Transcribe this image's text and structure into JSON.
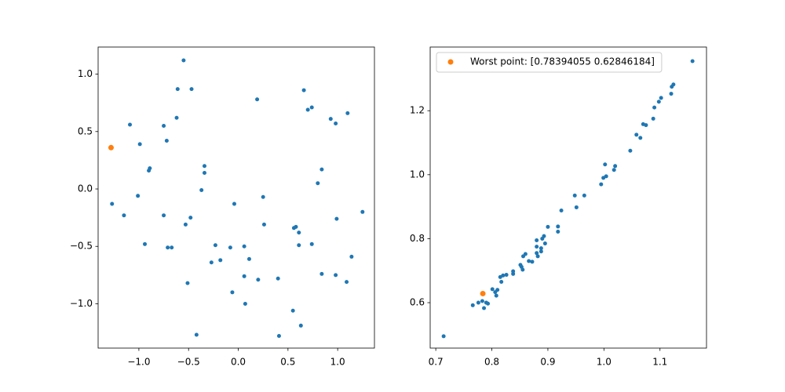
{
  "chart_data": [
    {
      "type": "scatter",
      "xlim": [
        -1.41,
        1.37
      ],
      "ylim": [
        -1.386,
        1.236
      ],
      "xticks": [
        {
          "value": -1,
          "label": "−1.0"
        },
        {
          "value": -0.5,
          "label": "−0.5"
        },
        {
          "value": 0,
          "label": "0.0"
        },
        0.5,
        {
          "value": 1,
          "label": "1.0"
        }
      ],
      "yticks": [
        {
          "value": -1,
          "label": "−1.0"
        },
        {
          "value": -0.5,
          "label": "−0.5"
        },
        {
          "value": 0,
          "label": "0.0"
        },
        0.5,
        {
          "value": 1,
          "label": "1.0"
        }
      ],
      "series": [
        {
          "color": "#1f77b4",
          "x": [
            -0.55,
            -0.61,
            -0.47,
            0.66,
            0.19,
            0.74,
            0.7,
            1.1,
            -0.62,
            0.93,
            0.98,
            -1.09,
            -0.75,
            -0.72,
            -0.99,
            -0.34,
            -0.34,
            -0.89,
            -0.9,
            0.84,
            0.8,
            -0.37,
            -1.01,
            0.25,
            -1.27,
            -0.04,
            -1.15,
            -0.75,
            -0.48,
            1.25,
            0.99,
            0.26,
            -0.53,
            0.56,
            0.58,
            0.61,
            -0.94,
            -0.23,
            0.61,
            0.74,
            -0.71,
            -0.67,
            -0.08,
            0.06,
            1.14,
            0.11,
            -0.18,
            -0.27,
            0.84,
            0.06,
            0.4,
            0.2,
            0.98,
            1.09,
            -0.51,
            -0.06,
            0.07,
            0.55,
            0.63,
            -0.42,
            0.41
          ],
          "values": [
            1.12,
            0.87,
            0.87,
            0.86,
            0.78,
            0.71,
            0.69,
            0.66,
            0.62,
            0.61,
            0.57,
            0.56,
            0.55,
            0.42,
            0.39,
            0.2,
            0.14,
            0.18,
            0.16,
            0.17,
            0.05,
            -0.01,
            -0.06,
            -0.07,
            -0.13,
            -0.13,
            -0.23,
            -0.23,
            -0.25,
            -0.2,
            -0.26,
            -0.31,
            -0.31,
            -0.34,
            -0.33,
            -0.38,
            -0.48,
            -0.49,
            -0.49,
            -0.48,
            -0.51,
            -0.51,
            -0.51,
            -0.5,
            -0.59,
            -0.61,
            -0.62,
            -0.64,
            -0.74,
            -0.76,
            -0.78,
            -0.79,
            -0.75,
            -0.81,
            -0.82,
            -0.9,
            -1.0,
            -1.06,
            -1.19,
            -1.27,
            -1.28
          ],
          "size": 4
        },
        {
          "color": "#ff7f0e",
          "x": [
            -1.28
          ],
          "values": [
            0.36
          ],
          "size": 6
        }
      ]
    },
    {
      "type": "scatter",
      "xlim": [
        0.69,
        1.183
      ],
      "ylim": [
        0.458,
        1.399
      ],
      "xticks": [
        0.7,
        0.8,
        0.9,
        {
          "value": 1,
          "label": "1.0"
        },
        1.1
      ],
      "yticks": [
        0.6,
        0.8,
        {
          "value": 1,
          "label": "1.0"
        },
        1.2
      ],
      "legend": "upper left",
      "series": [
        {
          "color": "#1f77b4",
          "x": [
            0.714,
            0.766,
            0.776,
            0.783,
            0.786,
            0.79,
            0.793,
            0.801,
            0.806,
            0.808,
            0.81,
            0.815,
            0.817,
            0.82,
            0.826,
            0.838,
            0.838,
            0.851,
            0.853,
            0.855,
            0.856,
            0.86,
            0.866,
            0.872,
            0.88,
            0.88,
            0.88,
            0.882,
            0.888,
            0.888,
            0.89,
            0.893,
            0.895,
            0.9,
            0.918,
            0.918,
            0.924,
            0.948,
            0.951,
            0.965,
            0.995,
            0.999,
            1.002,
            1.004,
            1.018,
            1.02,
            1.047,
            1.058,
            1.065,
            1.07,
            1.075,
            1.088,
            1.09,
            1.098,
            1.102,
            1.12,
            1.121,
            1.124,
            1.158
          ],
          "values": [
            0.495,
            0.592,
            0.6,
            0.605,
            0.583,
            0.6,
            0.597,
            0.642,
            0.633,
            0.622,
            0.64,
            0.68,
            0.665,
            0.685,
            0.687,
            0.69,
            0.698,
            0.718,
            0.712,
            0.703,
            0.745,
            0.752,
            0.73,
            0.728,
            0.795,
            0.775,
            0.755,
            0.745,
            0.77,
            0.76,
            0.8,
            0.808,
            0.785,
            0.837,
            0.822,
            0.838,
            0.888,
            0.935,
            0.898,
            0.935,
            0.97,
            0.99,
            1.032,
            0.995,
            1.015,
            1.027,
            1.075,
            1.125,
            1.115,
            1.158,
            1.155,
            1.175,
            1.21,
            1.228,
            1.24,
            1.253,
            1.275,
            1.282,
            1.355
          ],
          "size": 4
        },
        {
          "name": "Worst point: [0.78394055 0.62846184]",
          "color": "#ff7f0e",
          "x": [
            0.78394055
          ],
          "values": [
            0.62846184
          ],
          "size": 6
        }
      ]
    }
  ]
}
